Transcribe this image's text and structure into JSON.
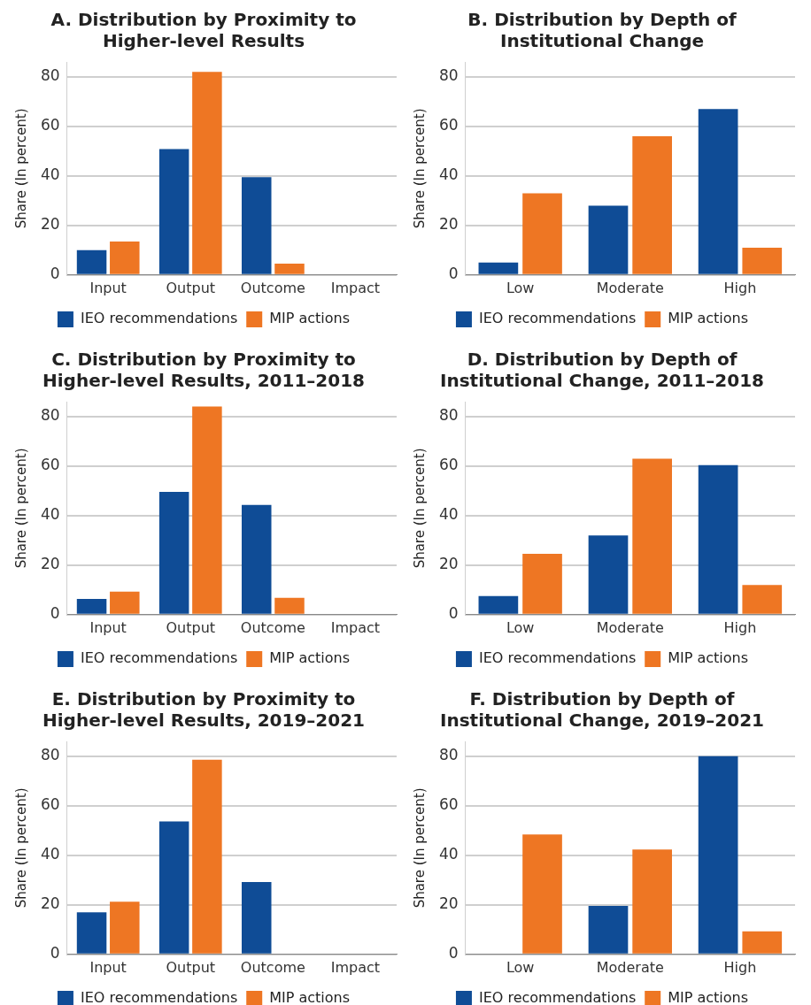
{
  "chart_data": [
    {
      "type": "bar",
      "title": "A. Distribution by Proximity to Higher-level Results",
      "ylabel": "Share (In percent)",
      "categories": [
        "Input",
        "Output",
        "Outcome",
        "Impact"
      ],
      "series": [
        {
          "name": "IEO recommendations",
          "color": "#0f4c96",
          "values": [
            10,
            50.8,
            39.5,
            0
          ]
        },
        {
          "name": "MIP actions",
          "color": "#ee7623",
          "values": [
            13.5,
            82,
            4.6,
            0
          ]
        }
      ],
      "ylim": [
        0,
        86
      ],
      "yticks": [
        0,
        20,
        40,
        60,
        80
      ],
      "grid": "y",
      "legend": "bottom"
    },
    {
      "type": "bar",
      "title": "B. Distribution by Depth of Institutional Change",
      "ylabel": "Share (In percent)",
      "categories": [
        "Low",
        "Moderate",
        "High"
      ],
      "series": [
        {
          "name": "IEO recommendations",
          "color": "#0f4c96",
          "values": [
            5,
            28,
            67
          ]
        },
        {
          "name": "MIP actions",
          "color": "#ee7623",
          "values": [
            33,
            56,
            11
          ]
        }
      ],
      "ylim": [
        0,
        86
      ],
      "yticks": [
        0,
        20,
        40,
        60,
        80
      ],
      "grid": "y",
      "legend": "bottom"
    },
    {
      "type": "bar",
      "title": "C. Distribution by Proximity to Higher-level Results, 2011–2018",
      "ylabel": "Share (In percent)",
      "categories": [
        "Input",
        "Output",
        "Outcome",
        "Impact"
      ],
      "series": [
        {
          "name": "IEO recommendations",
          "color": "#0f4c96",
          "values": [
            6.4,
            49.6,
            44.3,
            0
          ]
        },
        {
          "name": "MIP actions",
          "color": "#ee7623",
          "values": [
            9.3,
            84,
            6.8,
            0
          ]
        }
      ],
      "ylim": [
        0,
        86
      ],
      "yticks": [
        0,
        20,
        40,
        60,
        80
      ],
      "grid": "y",
      "legend": "bottom"
    },
    {
      "type": "bar",
      "title": "D. Distribution by Depth of Institutional Change, 2011–2018",
      "ylabel": "Share (In percent)",
      "categories": [
        "Low",
        "Moderate",
        "High"
      ],
      "series": [
        {
          "name": "IEO recommendations",
          "color": "#0f4c96",
          "values": [
            7.5,
            32,
            60.4
          ]
        },
        {
          "name": "MIP actions",
          "color": "#ee7623",
          "values": [
            24.6,
            63,
            12
          ]
        }
      ],
      "ylim": [
        0,
        86
      ],
      "yticks": [
        0,
        20,
        40,
        60,
        80
      ],
      "grid": "y",
      "legend": "bottom"
    },
    {
      "type": "bar",
      "title": "E. Distribution by Proximity to Higher-level Results, 2019–2021",
      "ylabel": "Share (In percent)",
      "categories": [
        "Input",
        "Output",
        "Outcome",
        "Impact"
      ],
      "series": [
        {
          "name": "IEO recommendations",
          "color": "#0f4c96",
          "values": [
            17,
            53.7,
            29.2,
            0
          ]
        },
        {
          "name": "MIP actions",
          "color": "#ee7623",
          "values": [
            21.3,
            78.6,
            0,
            0
          ]
        }
      ],
      "ylim": [
        0,
        86
      ],
      "yticks": [
        0,
        20,
        40,
        60,
        80
      ],
      "grid": "y",
      "legend": "bottom"
    },
    {
      "type": "bar",
      "title": "F. Distribution by Depth of Institutional Change, 2019–2021",
      "ylabel": "Share (In percent)",
      "categories": [
        "Low",
        "Moderate",
        "High"
      ],
      "series": [
        {
          "name": "IEO recommendations",
          "color": "#0f4c96",
          "values": [
            0,
            19.6,
            80
          ]
        },
        {
          "name": "MIP actions",
          "color": "#ee7623",
          "values": [
            48.4,
            42.3,
            9.3
          ]
        }
      ],
      "ylim": [
        0,
        86
      ],
      "yticks": [
        0,
        20,
        40,
        60,
        80
      ],
      "grid": "y",
      "legend": "bottom"
    }
  ]
}
